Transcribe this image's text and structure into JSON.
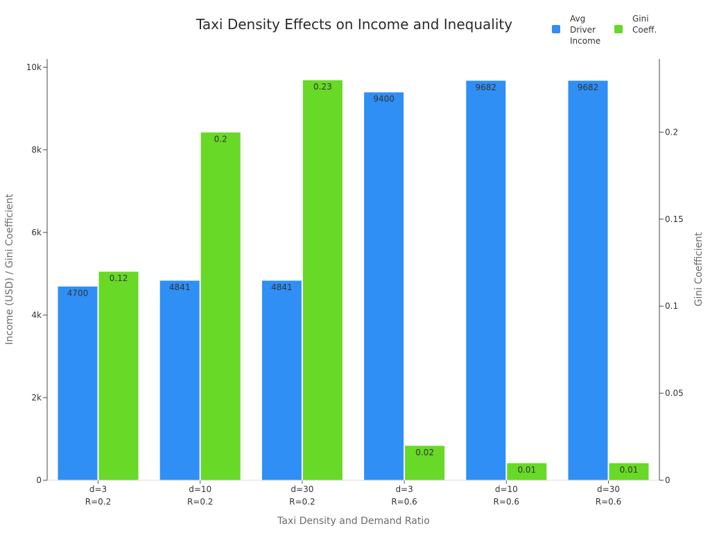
{
  "chart_data": {
    "type": "bar",
    "title": "Taxi Density Effects on Income and Inequality",
    "xlabel": "Taxi Density and Demand Ratio",
    "ylabel_left": "Income (USD) / Gini Coefficient",
    "ylabel_right": "Gini Coefficient",
    "categories": [
      [
        "d=3",
        "R=0.2"
      ],
      [
        "d=10",
        "R=0.2"
      ],
      [
        "d=30",
        "R=0.2"
      ],
      [
        "d=3",
        "R=0.6"
      ],
      [
        "d=10",
        "R=0.6"
      ],
      [
        "d=30",
        "R=0.6"
      ]
    ],
    "series": [
      {
        "name": "Avg Driver Income",
        "legend_lines": [
          "Avg",
          "Driver",
          "Income"
        ],
        "axis": "left",
        "color": "#2f8ff5",
        "values": [
          4700,
          4841,
          4841,
          9400,
          9682,
          9682
        ],
        "labels": [
          "4700",
          "4841",
          "4841",
          "9400",
          "9682",
          "9682"
        ]
      },
      {
        "name": "Gini Coeff.",
        "legend_lines": [
          "Gini",
          "Coeff."
        ],
        "axis": "right",
        "color": "#67d926",
        "values": [
          0.12,
          0.2,
          0.23,
          0.02,
          0.01,
          0.01
        ],
        "labels": [
          "0.12",
          "0.2",
          "0.23",
          "0.02",
          "0.01",
          "0.01"
        ]
      }
    ],
    "ylim_left": [
      0,
      10200
    ],
    "yticks_left": [
      {
        "v": 0,
        "label": "0"
      },
      {
        "v": 2000,
        "label": "2k"
      },
      {
        "v": 4000,
        "label": "4k"
      },
      {
        "v": 6000,
        "label": "6k"
      },
      {
        "v": 8000,
        "label": "8k"
      },
      {
        "v": 10000,
        "label": "10k"
      }
    ],
    "ylim_right": [
      0,
      0.242
    ],
    "yticks_right": [
      {
        "v": 0,
        "label": "0"
      },
      {
        "v": 0.05,
        "label": "0.05"
      },
      {
        "v": 0.1,
        "label": "0.1"
      },
      {
        "v": 0.15,
        "label": "0.15"
      },
      {
        "v": 0.2,
        "label": "0.2"
      }
    ],
    "grid": false,
    "legend_position": "top-right"
  }
}
